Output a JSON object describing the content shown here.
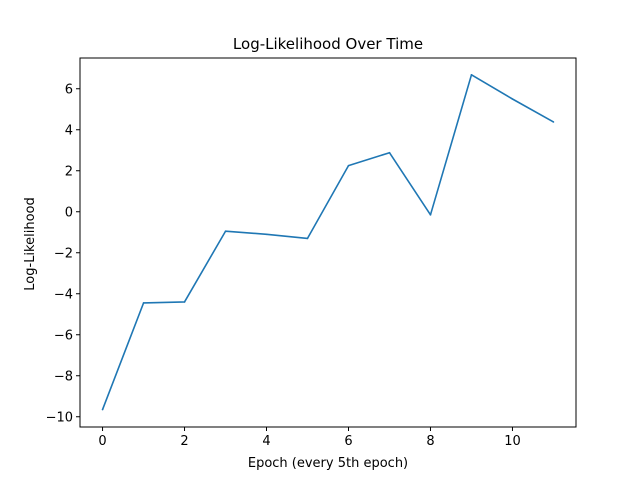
{
  "chart_data": {
    "type": "line",
    "title": "Log-Likelihood Over Time",
    "xlabel": "Epoch (every 5th epoch)",
    "ylabel": "Log-Likelihood",
    "x": [
      0,
      1,
      2,
      3,
      4,
      5,
      6,
      7,
      8,
      9,
      10,
      11
    ],
    "series": [
      {
        "values": [
          -9.65,
          -4.45,
          -4.4,
          -0.95,
          -1.1,
          -1.3,
          2.25,
          2.88,
          -0.15,
          6.68,
          5.5,
          4.38
        ],
        "color": "#1f77b4"
      }
    ],
    "xlim": [
      -0.55,
      11.55
    ],
    "ylim": [
      -10.5,
      7.5
    ],
    "xticks": [
      0,
      2,
      4,
      6,
      8,
      10
    ],
    "yticks": [
      -10,
      -8,
      -6,
      -4,
      -2,
      0,
      2,
      4,
      6
    ],
    "grid": false
  }
}
